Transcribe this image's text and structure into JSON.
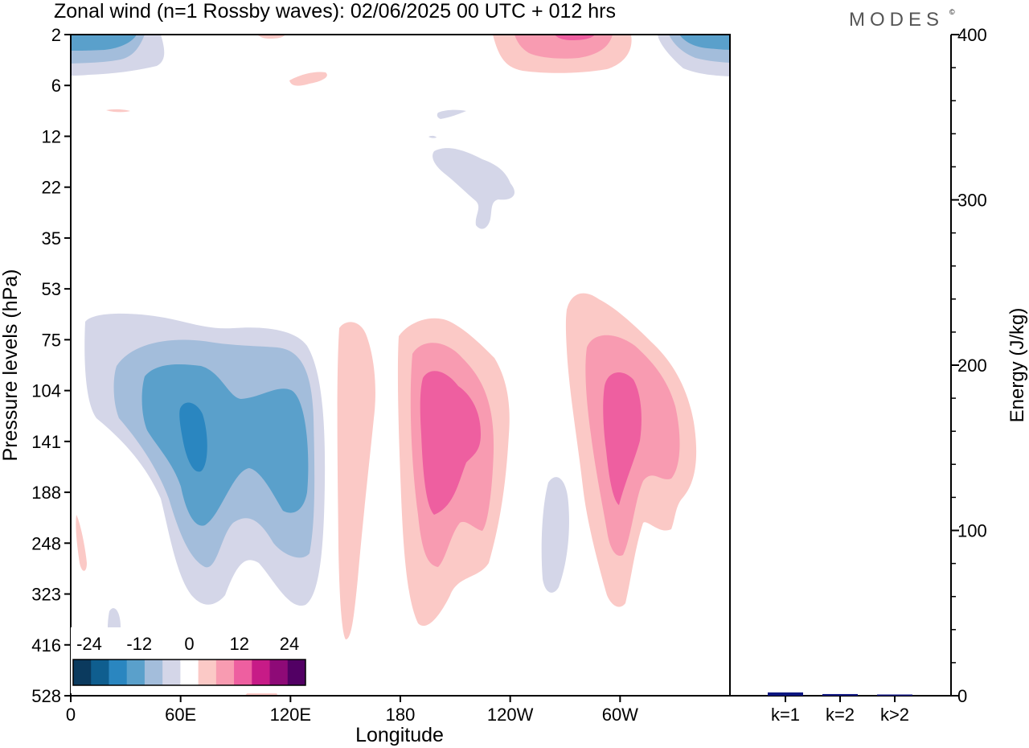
{
  "title": "Zonal wind (n=1 Rossby waves):  02/06/2025  00 UTC  + 012 hrs",
  "brand": "MODES",
  "brand_mark": "©",
  "chart_data": [
    {
      "type": "heatmap",
      "xlabel": "Longitude",
      "ylabel": "Pressure levels (hPa)",
      "x_ticks": [
        "0",
        "60E",
        "120E",
        "180",
        "120W",
        "60W"
      ],
      "x_tick_deg": [
        0,
        60,
        120,
        180,
        240,
        300
      ],
      "xlim": [
        0,
        360
      ],
      "y_ticks": [
        "2",
        "6",
        "12",
        "22",
        "35",
        "53",
        "75",
        "104",
        "141",
        "188",
        "248",
        "323",
        "416",
        "528"
      ],
      "colorbar": {
        "labels": [
          "-24",
          "-12",
          "0",
          "12",
          "24"
        ],
        "colors": [
          "#0b3a5e",
          "#0f5e8f",
          "#2a86c0",
          "#5aa0cb",
          "#a3bddb",
          "#d4d6e8",
          "#ffffff",
          "#fbc9c6",
          "#f89bb1",
          "#ee5fa0",
          "#c71b87",
          "#8e0a77",
          "#520064"
        ]
      },
      "fields": [
        {
          "sign": "negative",
          "max_level": -18,
          "center_lon": 70,
          "center_hPa": 141
        },
        {
          "sign": "positive",
          "max_level": 12,
          "center_lon": 200,
          "center_hPa": 141
        },
        {
          "sign": "positive",
          "max_level": 12,
          "center_lon": 300,
          "center_hPa": 141
        },
        {
          "sign": "positive",
          "max_level": 3,
          "center_lon": 155,
          "center_hPa": 188
        },
        {
          "sign": "negative",
          "max_level": -3,
          "center_lon": 257,
          "center_hPa": 248
        },
        {
          "sign": "negative",
          "max_level": -12,
          "center_lon": 0,
          "center_hPa": 2
        },
        {
          "sign": "positive",
          "max_level": 12,
          "center_lon": 275,
          "center_hPa": 2
        },
        {
          "sign": "negative",
          "max_level": -3,
          "center_lon": 225,
          "center_hPa": 22
        }
      ]
    },
    {
      "type": "bar",
      "ylabel": "Energy (J/kg)",
      "categories": [
        "k=1",
        "k=2",
        "k>2"
      ],
      "values": [
        2,
        1,
        0.5
      ],
      "ylim": [
        0,
        400
      ],
      "y_ticks": [
        "0",
        "100",
        "200",
        "300",
        "400"
      ],
      "bar_color": "#0b1680"
    }
  ]
}
